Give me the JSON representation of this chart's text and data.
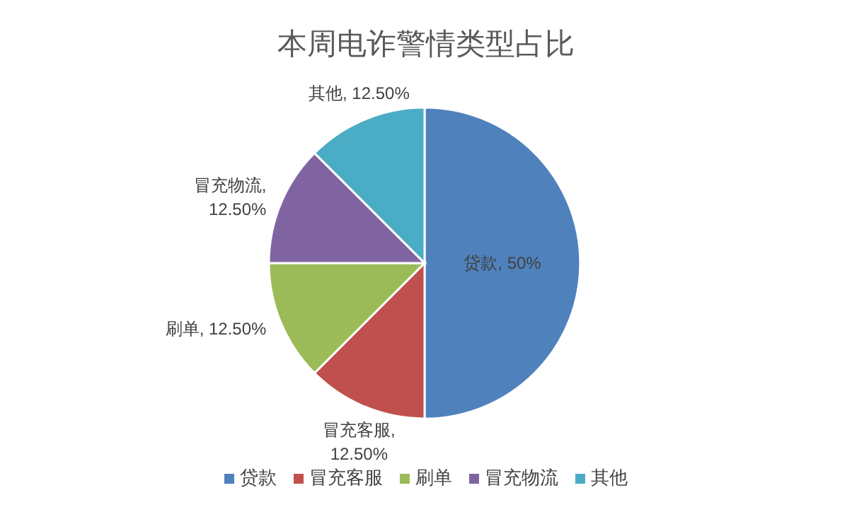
{
  "chart_data": {
    "type": "pie",
    "title": "本周电诈警情类型占比",
    "categories": [
      "贷款",
      "冒充客服",
      "刷单",
      "冒充物流",
      "其他"
    ],
    "values": [
      50,
      12.5,
      12.5,
      12.5,
      12.5
    ],
    "value_labels": [
      "贷款, 50%",
      "冒充客服, 12.50%",
      "刷单, 12.50%",
      "冒充物流, 12.50%",
      "其他, 12.50%"
    ],
    "colors": [
      "#4f81bd",
      "#c0504d",
      "#9bbb59",
      "#8064a2",
      "#4bacc6"
    ],
    "legend": "bottom"
  }
}
